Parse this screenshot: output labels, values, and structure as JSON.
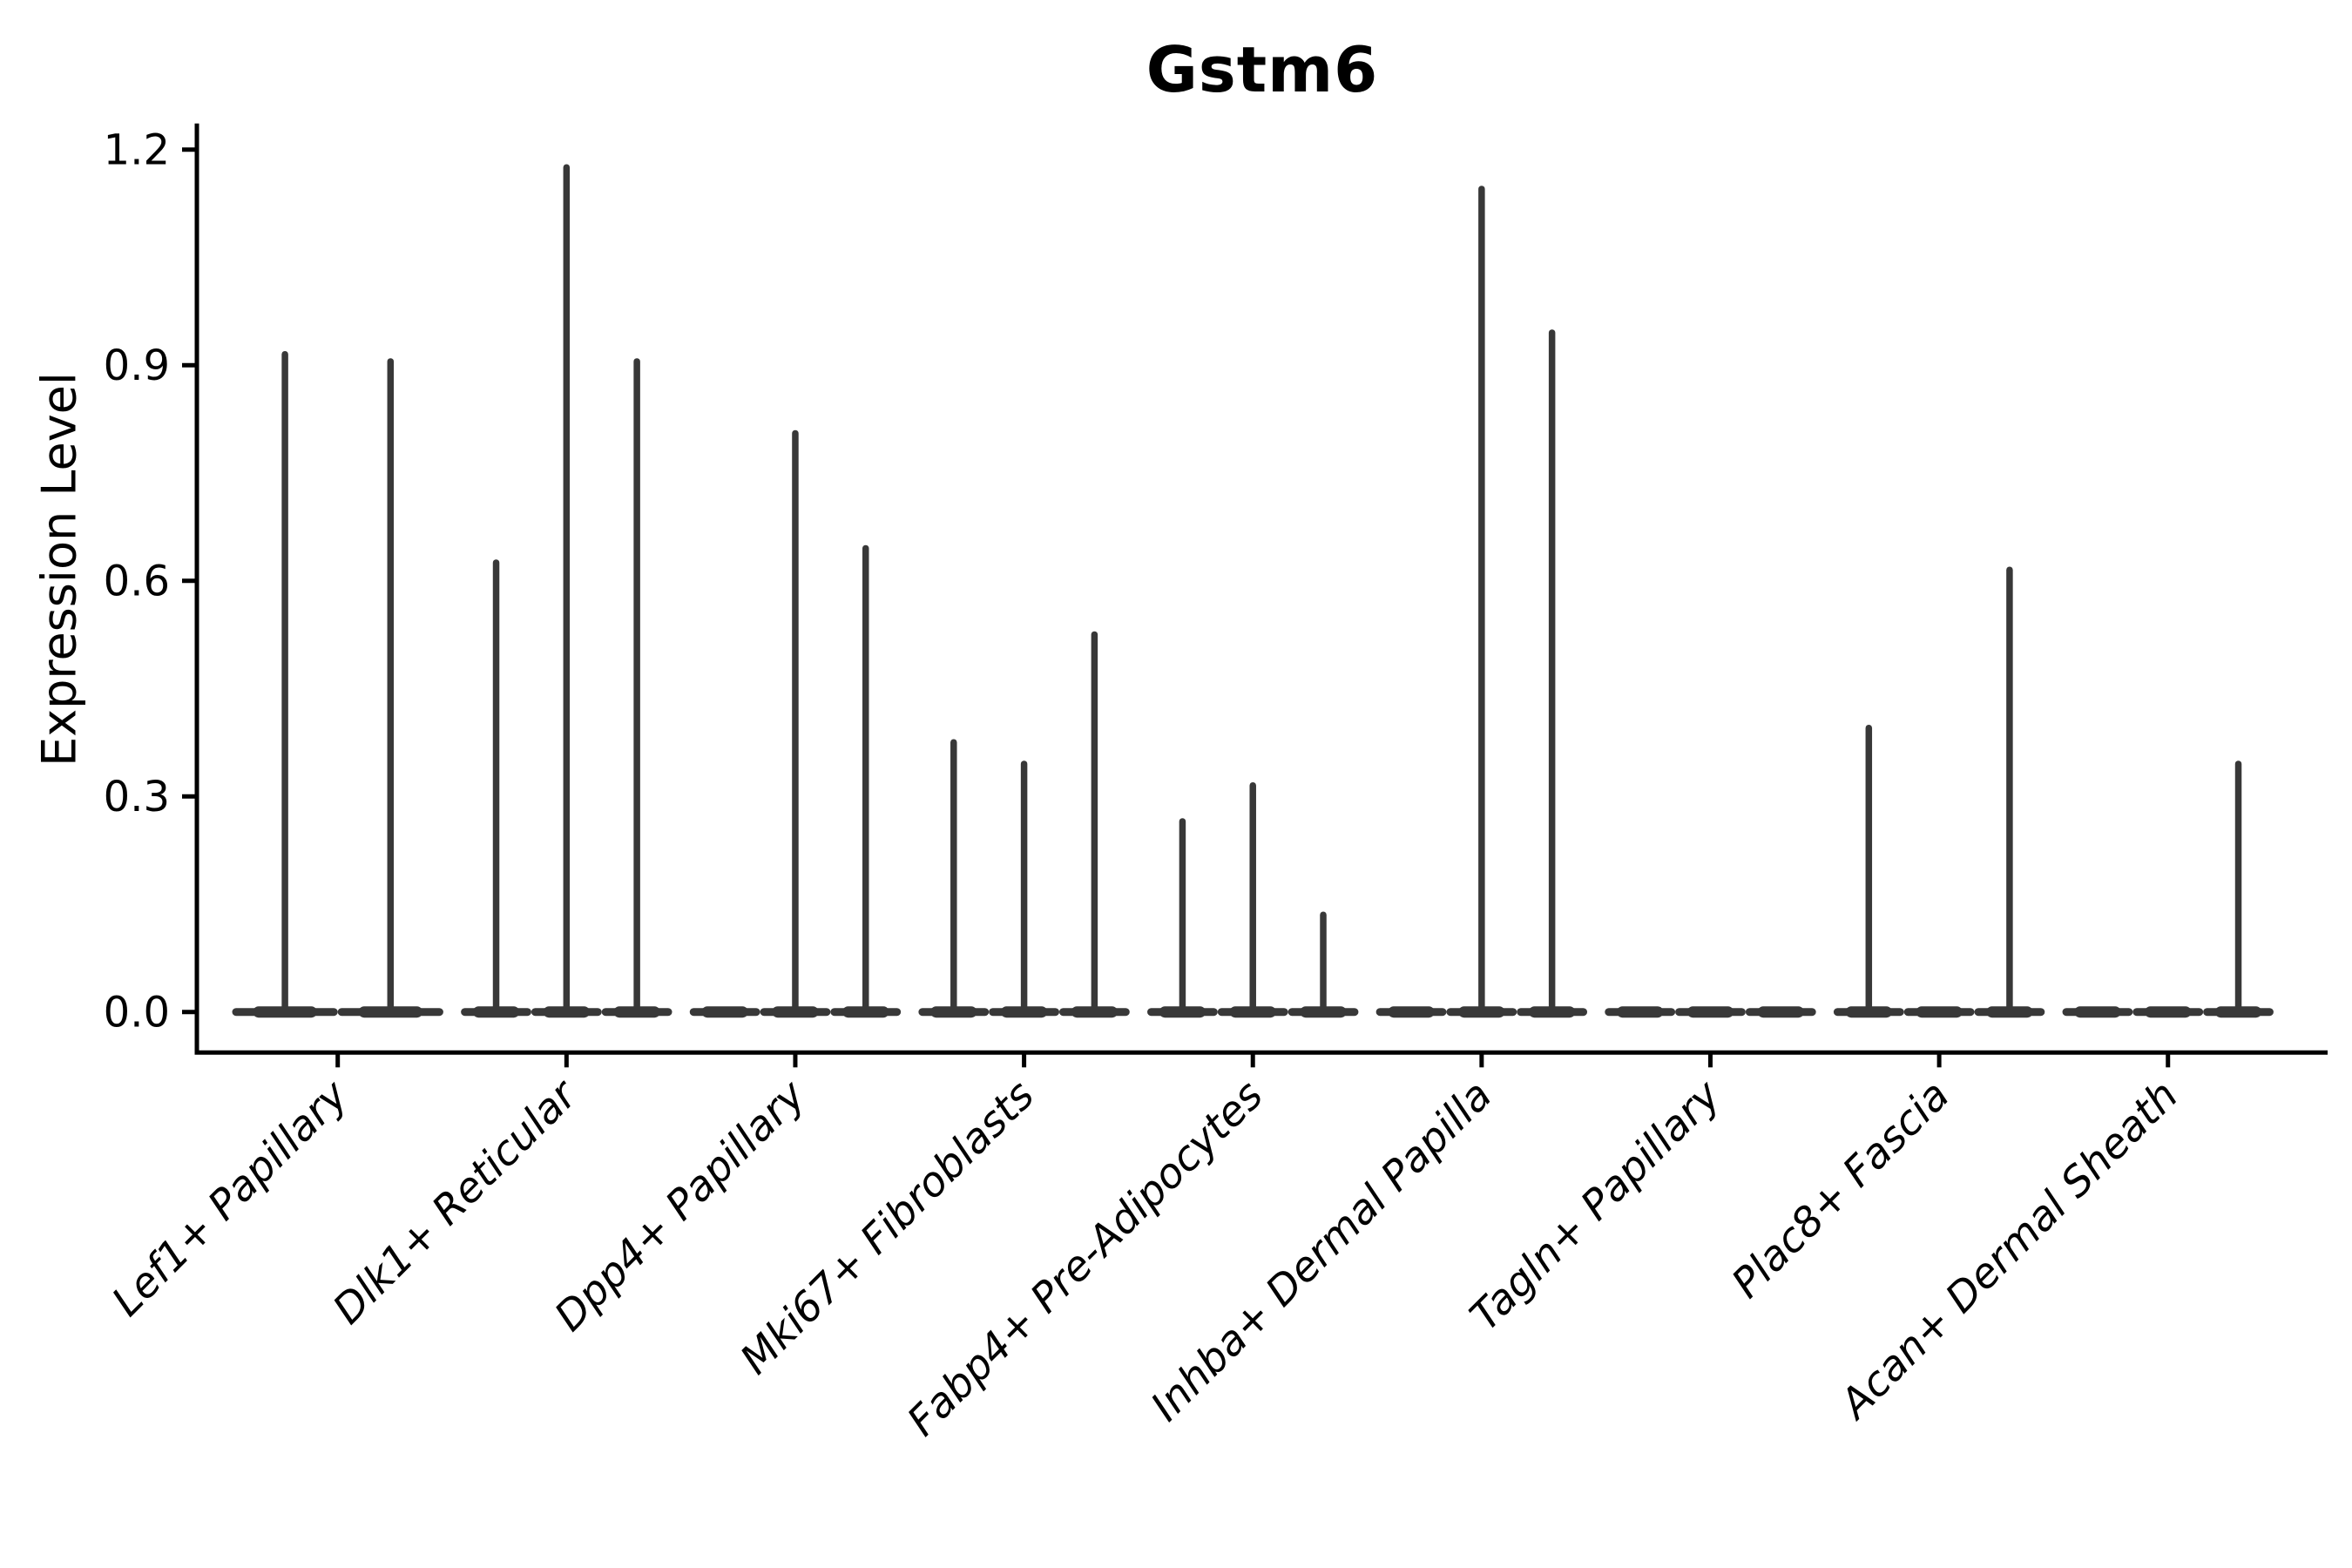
{
  "chart_data": {
    "type": "violin",
    "title": "Gstm6",
    "ylabel": "Expression Level",
    "xlabel": "",
    "ylim": [
      0,
      1.2
    ],
    "yticks": [
      0.0,
      0.3,
      0.6,
      0.9,
      1.2
    ],
    "ytick_labels": [
      "0.0",
      "0.3",
      "0.6",
      "0.9",
      "1.2"
    ],
    "grid": false,
    "legend": "none",
    "ink_color": "#383838",
    "axis_color": "#000000",
    "categories": [
      "Lef1+ Papillary",
      "Dlk1+ Reticular",
      "Dpp4+ Papillary",
      "Mki67+ Fibroblasts",
      "Fabp4+ Pre-Adipocytes",
      "Inhba+ Dermal Papilla",
      "Tagln+ Papillary",
      "Plac8+ Fascia",
      "Acan+ Dermal Sheath"
    ],
    "note": "Each category shows 2-3 narrow violins: a flat dense base at expression 0 with a thin spike up to the max expression value; null peak means all cells at 0 (no spike).",
    "groups": [
      {
        "category": "Lef1+ Papillary",
        "violin_peaks": [
          0.92,
          0.91
        ]
      },
      {
        "category": "Dlk1+ Reticular",
        "violin_peaks": [
          0.63,
          1.18,
          0.91
        ]
      },
      {
        "category": "Dpp4+ Papillary",
        "violin_peaks": [
          null,
          0.81,
          0.65
        ]
      },
      {
        "category": "Mki67+ Fibroblasts",
        "violin_peaks": [
          0.38,
          0.35,
          0.53
        ]
      },
      {
        "category": "Fabp4+ Pre-Adipocytes",
        "violin_peaks": [
          0.27,
          0.32,
          0.14
        ]
      },
      {
        "category": "Inhba+ Dermal Papilla",
        "violin_peaks": [
          null,
          1.15,
          0.95
        ]
      },
      {
        "category": "Tagln+ Papillary",
        "violin_peaks": [
          null,
          null,
          null
        ]
      },
      {
        "category": "Plac8+ Fascia",
        "violin_peaks": [
          0.4,
          null,
          0.62
        ]
      },
      {
        "category": "Acan+ Dermal Sheath",
        "violin_peaks": [
          null,
          null,
          0.35
        ]
      }
    ]
  }
}
